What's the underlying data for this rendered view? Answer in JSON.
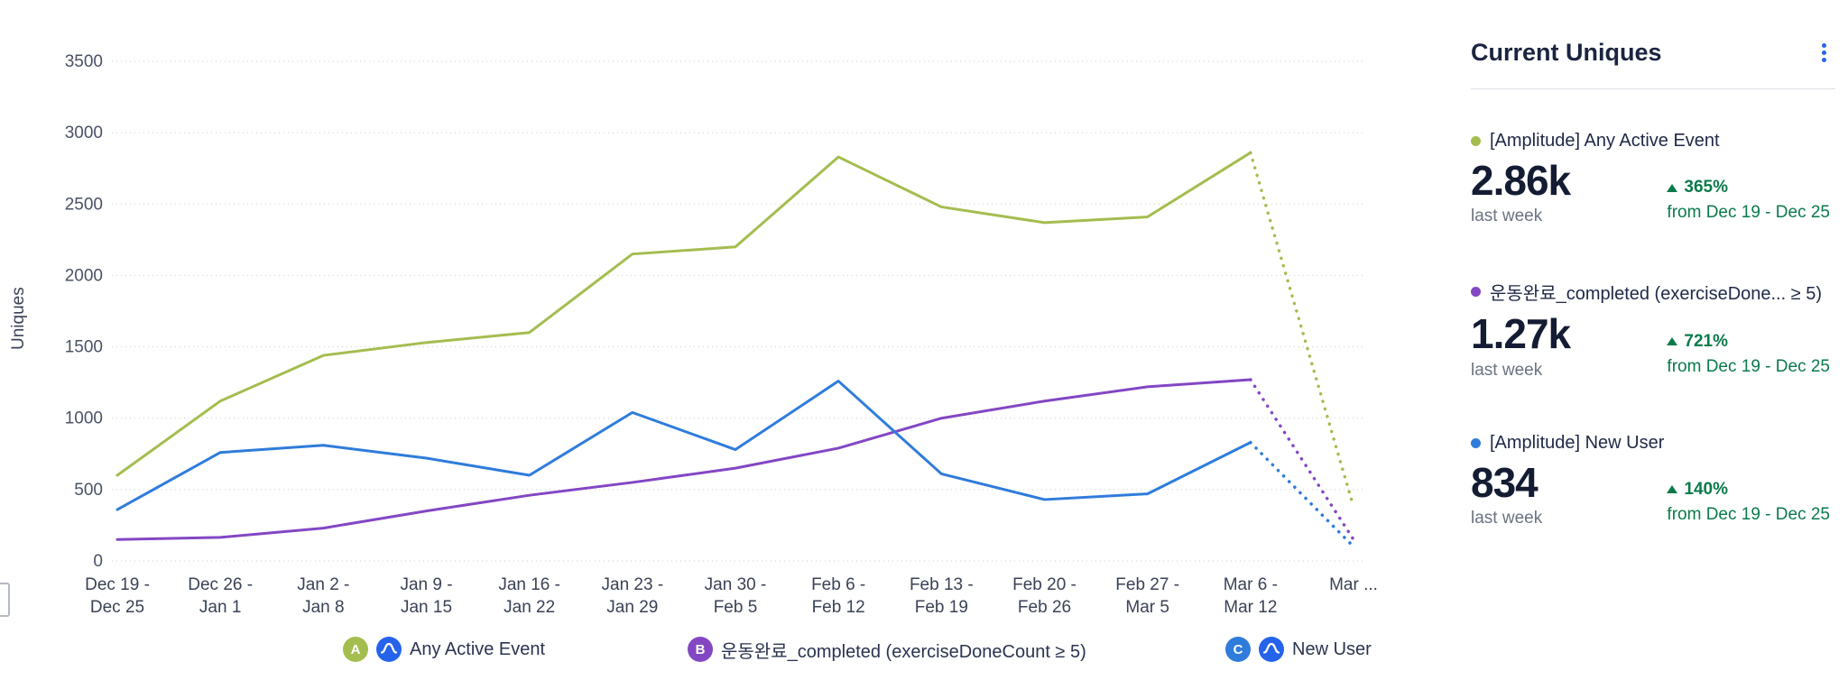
{
  "colors": {
    "series_green": "#a4bd4f",
    "series_purple": "#8347c4",
    "series_blue": "#2f7cdb",
    "accent_blue": "#2563eb",
    "positive_green": "#0a7a4b",
    "grid_gray": "#c9cdd6",
    "text_dark": "#1f2847",
    "text_gray": "#6b7280"
  },
  "chart_data": {
    "type": "line",
    "title": "",
    "xlabel": "",
    "ylabel": "Uniques",
    "ylim": [
      0,
      3500
    ],
    "y_ticks": [
      0,
      500,
      1000,
      1500,
      2000,
      2500,
      3000,
      3500
    ],
    "grid": "dotted-horizontal",
    "legend_position": "bottom",
    "last_point_projected_dotted": true,
    "categories": [
      "Dec 19 - Dec 25",
      "Dec 26 - Jan 1",
      "Jan 2 - Jan 8",
      "Jan 9 - Jan 15",
      "Jan 16 - Jan 22",
      "Jan 23 - Jan 29",
      "Jan 30 - Feb 5",
      "Feb 6 - Feb 12",
      "Feb 13 - Feb 19",
      "Feb 20 - Feb 26",
      "Feb 27 - Mar 5",
      "Mar 6 - Mar 12",
      "Mar ..."
    ],
    "series": [
      {
        "name": "[Amplitude] Any Active Event",
        "letter": "A",
        "color": "#a4bd4f",
        "values": [
          600,
          1120,
          1440,
          1530,
          1600,
          2150,
          2200,
          2830,
          2480,
          2370,
          2410,
          2860,
          380
        ]
      },
      {
        "name": "운동완료_completed (exerciseDoneCount ≥ 5)",
        "letter": "B",
        "color": "#8347c4",
        "values": [
          150,
          165,
          230,
          350,
          460,
          550,
          650,
          790,
          1000,
          1120,
          1220,
          1270,
          150
        ]
      },
      {
        "name": "[Amplitude] New User",
        "letter": "C",
        "color": "#2f7cdb",
        "values": [
          360,
          760,
          810,
          720,
          600,
          1040,
          780,
          1260,
          610,
          430,
          470,
          830,
          100
        ]
      }
    ]
  },
  "legend": {
    "items": [
      {
        "letter": "A",
        "label": "Any Active Event",
        "amplitude_icon": true
      },
      {
        "letter": "B",
        "label": "운동완료_completed (exerciseDoneCount ≥ 5)",
        "amplitude_icon": false
      },
      {
        "letter": "C",
        "label": "New User",
        "amplitude_icon": true
      }
    ]
  },
  "panel": {
    "title": "Current Uniques",
    "menu_icon": "kebab-menu-icon",
    "metrics": [
      {
        "label": "[Amplitude] Any Active Event",
        "color": "#a4bd4f",
        "value": "2.86k",
        "period": "last week",
        "change": "365%",
        "direction": "up",
        "change_from": "from Dec 19 - Dec 25"
      },
      {
        "label": "운동완료_completed (exerciseDone...  ≥ 5)",
        "color": "#8347c4",
        "value": "1.27k",
        "period": "last week",
        "change": "721%",
        "direction": "up",
        "change_from": "from Dec 19 - Dec 25"
      },
      {
        "label": "[Amplitude] New User",
        "color": "#2f7cdb",
        "value": "834",
        "period": "last week",
        "change": "140%",
        "direction": "up",
        "change_from": "from Dec 19 - Dec 25"
      }
    ]
  }
}
